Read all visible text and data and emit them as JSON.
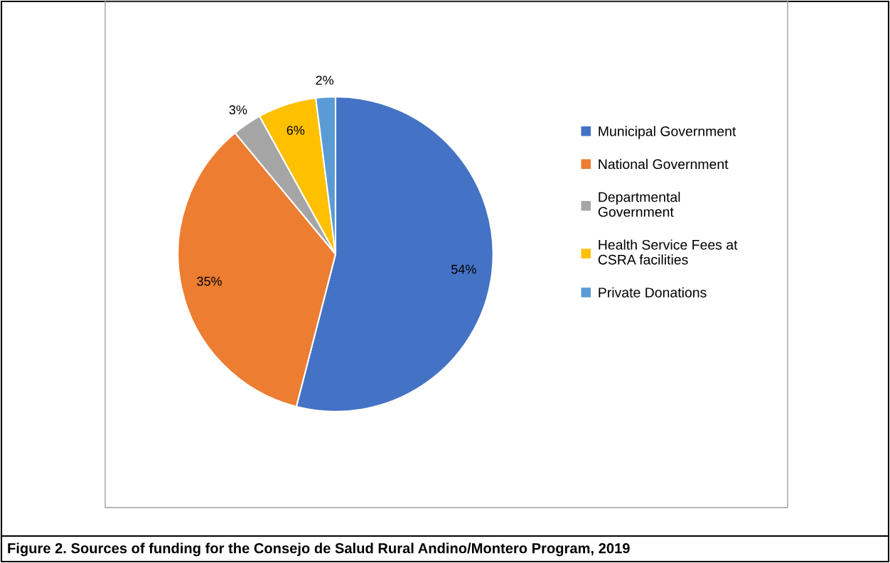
{
  "chart_data": {
    "type": "pie",
    "categories": [
      "Municipal Government",
      "National Government",
      "Departmental Government",
      "Health Service Fees at CSRA facilities",
      "Private Donations"
    ],
    "values": [
      54,
      35,
      3,
      6,
      2
    ],
    "colors": [
      "#4472c4",
      "#ed7d31",
      "#a5a5a5",
      "#ffc000",
      "#5b9bd5"
    ],
    "value_labels": [
      "54%",
      "35%",
      "3%",
      "6%",
      "2%"
    ],
    "legend": "right",
    "annotations": [
      "Figure 2. Sources of funding for the Consejo de Salud Rural Andino/Montero Program, 2019"
    ]
  }
}
